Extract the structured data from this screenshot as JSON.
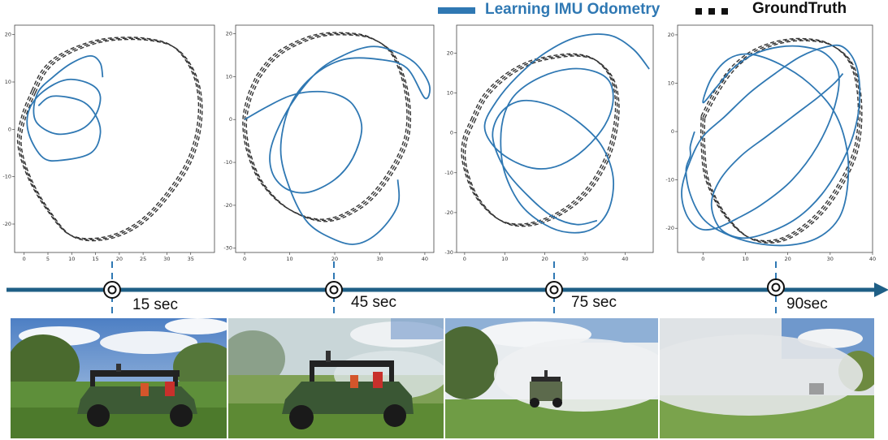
{
  "legend": {
    "learned_label": "Learning IMU Odometry",
    "groundtruth_label": "GroundTruth",
    "learned_color": "#2f78b3",
    "groundtruth_color": "#333333"
  },
  "timeline": {
    "markers": [
      {
        "label": "15 sec"
      },
      {
        "label": "45 sec"
      },
      {
        "label": "75 sec"
      },
      {
        "label": "90sec"
      }
    ],
    "color": "#1f5f86"
  },
  "photos": [
    {
      "scene": "utility-vehicle-in-grass-clear-air"
    },
    {
      "scene": "utility-vehicle-in-light-smoke"
    },
    {
      "scene": "vehicle-approaching-in-dense-smoke"
    },
    {
      "scene": "vehicle-almost-hidden-in-smoke"
    }
  ],
  "chart_data": [
    {
      "type": "line",
      "xticks": [
        0,
        5,
        10,
        15,
        20,
        25,
        30,
        35
      ],
      "yticks": [
        -20,
        -10,
        0,
        10,
        20
      ],
      "xlim": [
        -2,
        40
      ],
      "ylim": [
        -26,
        22
      ],
      "grid": false,
      "series": [
        {
          "role": "groundtruth",
          "style": "dashed",
          "x": [
            2,
            4,
            7,
            12,
            18,
            26,
            32,
            36,
            37,
            35,
            30,
            24,
            17,
            10,
            5,
            1,
            -1,
            0,
            2
          ],
          "y": [
            8,
            12,
            15,
            17.5,
            19,
            19,
            17,
            11,
            3,
            -6,
            -14,
            -20,
            -23,
            -22.5,
            -17,
            -10,
            -3,
            3,
            8
          ]
        },
        {
          "role": "learned",
          "style": "solid",
          "x": [
            16.5,
            16,
            14,
            10,
            6,
            3,
            2,
            3,
            7,
            12,
            15,
            16,
            14,
            9,
            4,
            1,
            1,
            4,
            8,
            14,
            16,
            15,
            12,
            6,
            3
          ],
          "y": [
            11,
            14,
            15.5,
            14,
            11,
            8,
            4,
            1,
            -1,
            0,
            3,
            7,
            9.5,
            10.5,
            8,
            4,
            -1,
            -6,
            -6.5,
            -5,
            -1,
            3,
            6,
            7,
            5
          ]
        }
      ]
    },
    {
      "type": "line",
      "xticks": [
        0,
        10,
        20,
        30,
        40
      ],
      "yticks": [
        -30,
        -20,
        -10,
        0,
        10,
        20
      ],
      "xlim": [
        -2,
        42
      ],
      "ylim": [
        -31,
        22
      ],
      "grid": false,
      "series": [
        {
          "role": "groundtruth",
          "style": "dashed",
          "x": [
            3,
            6,
            10,
            16,
            22,
            28,
            33,
            36,
            36,
            32,
            26,
            18,
            10,
            4,
            1,
            0,
            1,
            3
          ],
          "y": [
            10,
            14,
            17,
            19.5,
            20,
            19,
            15,
            6,
            -4,
            -13,
            -20,
            -23.5,
            -21,
            -15,
            -8,
            -1,
            5,
            10
          ]
        },
        {
          "role": "learned",
          "style": "solid",
          "x": [
            0,
            5,
            10,
            15,
            20,
            24,
            26,
            24,
            20,
            14,
            9,
            6,
            6,
            10,
            16,
            22,
            28,
            33,
            38,
            41,
            40,
            36,
            30,
            22,
            15,
            10,
            8,
            10,
            14,
            20,
            25,
            30,
            34,
            34
          ],
          "y": [
            0,
            3,
            5.5,
            6.5,
            6,
            3.5,
            -2,
            -9,
            -14,
            -17,
            -16,
            -12,
            -6,
            3,
            11,
            15,
            17,
            16,
            13,
            8,
            5,
            12,
            14,
            14,
            10,
            3,
            -7,
            -16,
            -24,
            -28,
            -29,
            -26,
            -20,
            -14
          ]
        }
      ]
    },
    {
      "type": "line",
      "xticks": [
        0,
        10,
        20,
        30,
        40
      ],
      "yticks": [
        -30,
        -20,
        -10,
        0,
        10,
        20
      ],
      "xlim": [
        -2,
        47
      ],
      "ylim": [
        -30,
        27
      ],
      "grid": false,
      "series": [
        {
          "role": "groundtruth",
          "style": "dashed",
          "x": [
            2,
            5,
            10,
            16,
            22,
            28,
            33,
            37,
            38,
            36,
            31,
            24,
            16,
            9,
            3,
            0,
            0,
            2
          ],
          "y": [
            3,
            9,
            14,
            17.5,
            19,
            19.5,
            18,
            13,
            5,
            -5,
            -14,
            -20,
            -23,
            -22,
            -16,
            -8,
            -2,
            3
          ]
        },
        {
          "role": "learned",
          "style": "solid",
          "x": [
            46,
            42,
            36,
            28,
            20,
            13,
            8,
            5,
            7,
            12,
            18,
            24,
            30,
            35,
            37,
            36,
            32,
            26,
            19,
            13,
            10,
            9,
            10,
            14,
            20,
            26,
            32,
            36,
            37,
            34,
            28,
            21,
            14,
            9,
            7,
            10,
            16,
            22,
            28,
            33
          ],
          "y": [
            16,
            21,
            24.5,
            24,
            20,
            14,
            8,
            2,
            -3,
            -7,
            -9,
            -8,
            -4,
            2,
            8,
            13,
            15.5,
            16,
            14,
            10,
            5,
            -2,
            -10,
            -18,
            -23,
            -25,
            -24,
            -19,
            -11,
            -3,
            3,
            7,
            8,
            5,
            -1,
            -9,
            -16,
            -21,
            -23,
            -22
          ]
        }
      ]
    },
    {
      "type": "line",
      "xticks": [
        0,
        10,
        20,
        30,
        40
      ],
      "yticks": [
        -20,
        -10,
        0,
        10,
        20
      ],
      "xlim": [
        -6,
        40
      ],
      "ylim": [
        -25,
        22
      ],
      "grid": false,
      "series": [
        {
          "role": "groundtruth",
          "style": "dashed",
          "x": [
            0,
            3,
            7,
            12,
            18,
            24,
            30,
            35,
            37,
            36,
            31,
            25,
            18,
            11,
            5,
            1,
            0,
            0
          ],
          "y": [
            3,
            8,
            13,
            16.5,
            18.5,
            19,
            18,
            14,
            6,
            -4,
            -13,
            -19,
            -22.5,
            -22,
            -17,
            -10,
            -3,
            3
          ]
        },
        {
          "role": "learned",
          "style": "solid",
          "x": [
            -2,
            -3,
            -3,
            -4,
            -3,
            0,
            5,
            12,
            20,
            27,
            32,
            34,
            34,
            31,
            25,
            18,
            11,
            6,
            2,
            0,
            3,
            7,
            12,
            18,
            24,
            29,
            32,
            31,
            27,
            21,
            14,
            8,
            3,
            -1,
            -4,
            -5,
            -3,
            0,
            5,
            11,
            17,
            23,
            29,
            33,
            36,
            37,
            36,
            33,
            28,
            22,
            15,
            9,
            4,
            2,
            4,
            9,
            15,
            21,
            27,
            31,
            33
          ],
          "y": [
            0,
            -3,
            -5,
            -8,
            -13,
            -18,
            -21,
            -23,
            -23.5,
            -22,
            -18,
            -12,
            -4,
            4,
            10,
            14,
            16,
            15,
            11,
            6,
            9,
            13,
            16,
            17.5,
            17.5,
            16,
            12,
            5,
            -3,
            -10,
            -15,
            -18,
            -20,
            -20,
            -17,
            -12,
            -6,
            -1,
            3,
            8,
            12,
            15.5,
            17.5,
            17.5,
            14,
            8,
            1,
            -6,
            -13,
            -18,
            -21,
            -22,
            -20,
            -15,
            -10,
            -5,
            -1,
            3,
            7,
            10,
            12
          ]
        }
      ]
    }
  ]
}
